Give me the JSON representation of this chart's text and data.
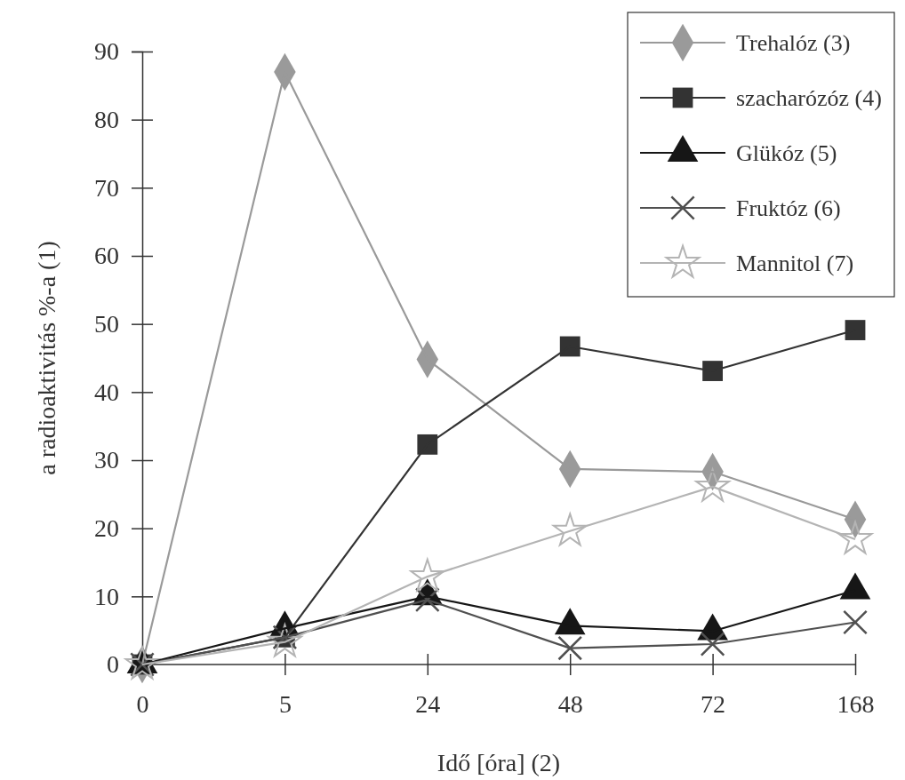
{
  "chart_data": {
    "type": "line",
    "xlabel": "Idő [óra] (2)",
    "ylabel": "a radioaktivitás %-a (1)",
    "categories": [
      "0",
      "5",
      "24",
      "48",
      "72",
      "168"
    ],
    "ylim": [
      0,
      90
    ],
    "yticks": [
      0,
      10,
      20,
      30,
      40,
      50,
      60,
      70,
      80,
      90
    ],
    "grid": false,
    "legend": "top right",
    "line_style": "solid",
    "series": [
      {
        "name": "Trehalóz (3)",
        "color": "#9a9a9a",
        "marker": "diamond",
        "values": [
          0,
          87,
          44.8,
          28.7,
          28.3,
          21.3
        ]
      },
      {
        "name": "szacharózóz (4)",
        "color": "#333333",
        "marker": "square",
        "values": [
          0,
          4,
          32.3,
          46.7,
          43.1,
          49.1
        ]
      },
      {
        "name": "Glükóz (5)",
        "color": "#161616",
        "marker": "triangle",
        "values": [
          0,
          5.3,
          10,
          5.7,
          4.9,
          10.9
        ]
      },
      {
        "name": "Fruktóz (6)",
        "color": "#505050",
        "marker": "cross",
        "values": [
          0,
          4,
          9.5,
          2.4,
          3,
          6.2
        ]
      },
      {
        "name": "Mannitol (7)",
        "color": "#b4b4b4",
        "marker": "star",
        "values": [
          0,
          3.3,
          12.9,
          19.6,
          26.1,
          18.4
        ]
      }
    ]
  }
}
